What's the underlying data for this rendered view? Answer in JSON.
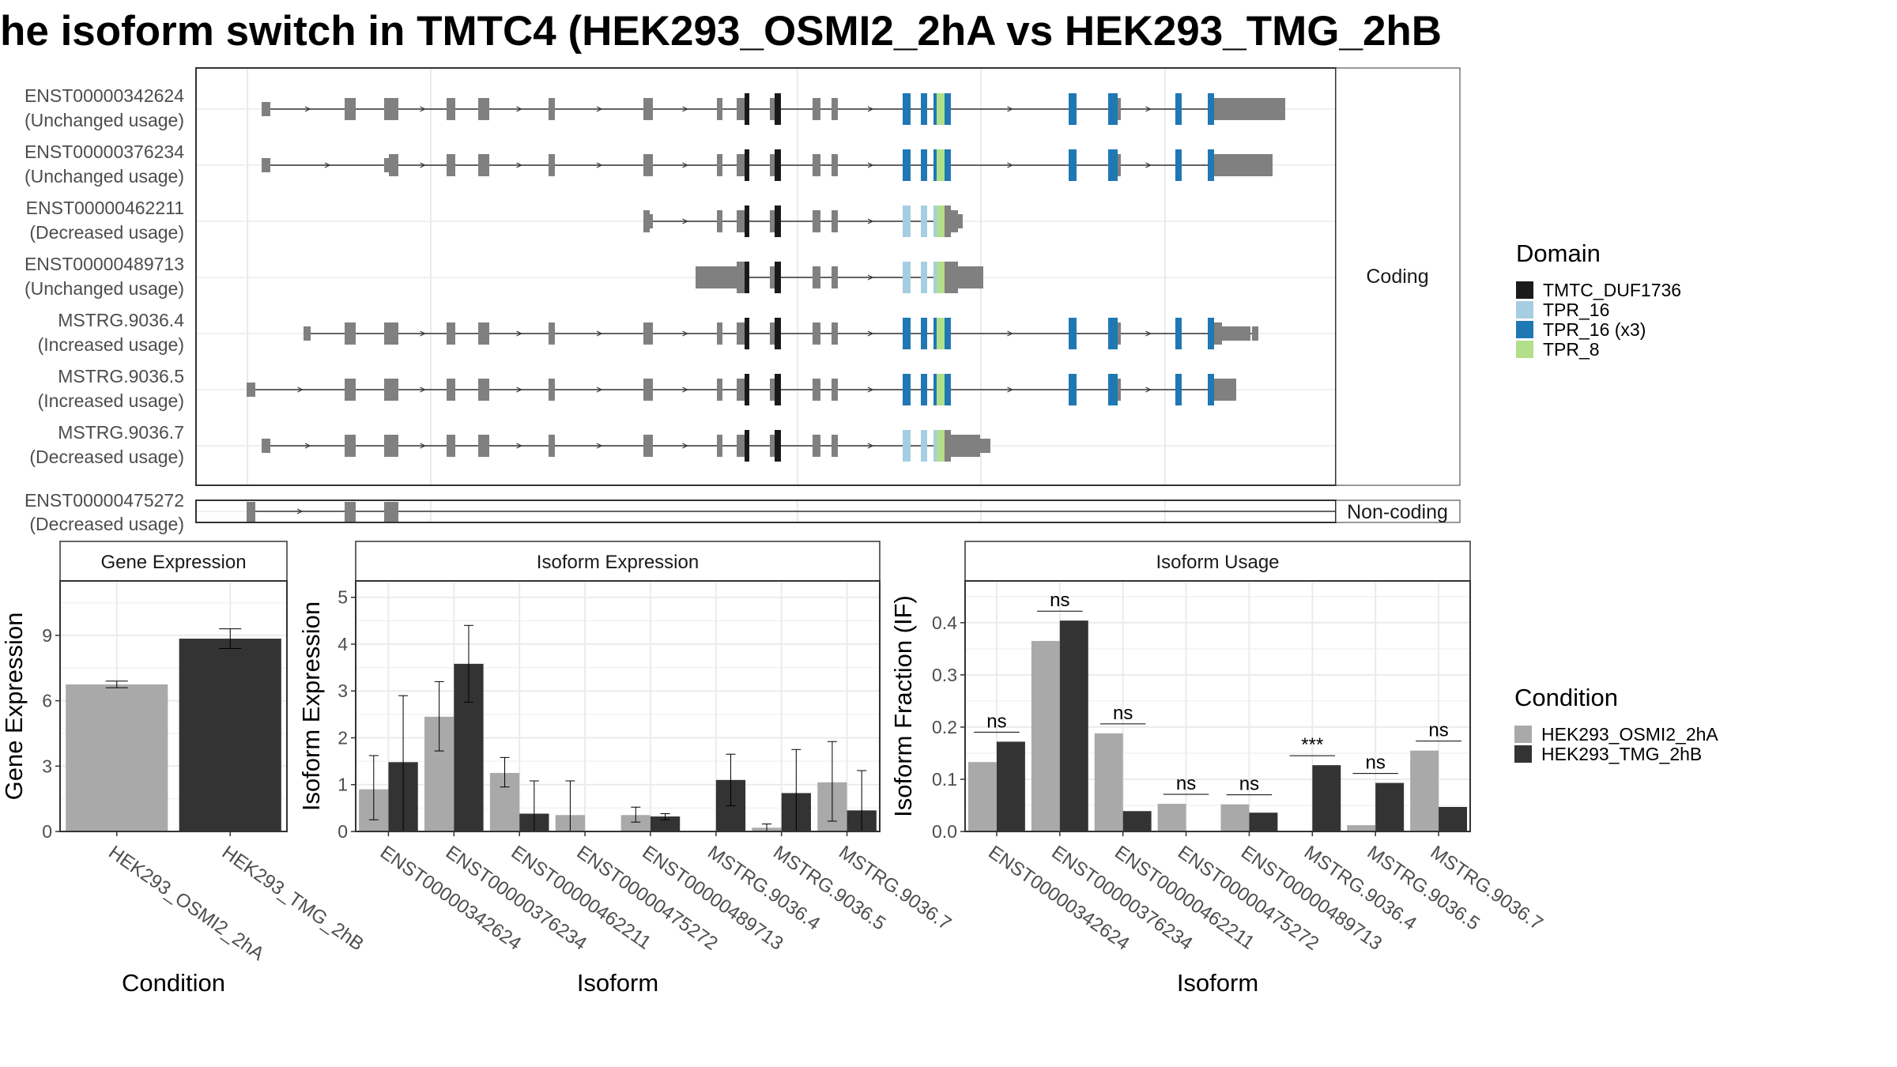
{
  "title": "he isoform switch in TMTC4 (HEK293_OSMI2_2hA vs HEK293_TMG_2hB",
  "colors": {
    "exon": "#808080",
    "intron": "#333333",
    "frame": "#333333",
    "grid": "#ebebeb",
    "condition_a": "#a9a9a9",
    "condition_b": "#333333"
  },
  "structure": {
    "coding_strip": "Coding",
    "noncoding_strip": "Non-coding",
    "coding_isoforms": [
      {
        "id": "ENST00000342624",
        "status": "(Unchanged usage)"
      },
      {
        "id": "ENST00000376234",
        "status": "(Unchanged usage)"
      },
      {
        "id": "ENST00000462211",
        "status": "(Decreased usage)"
      },
      {
        "id": "ENST00000489713",
        "status": "(Unchanged usage)"
      },
      {
        "id": "MSTRG.9036.4",
        "status": "(Increased usage)"
      },
      {
        "id": "MSTRG.9036.5",
        "status": "(Increased usage)"
      },
      {
        "id": "MSTRG.9036.7",
        "status": "(Decreased usage)"
      }
    ],
    "noncoding_isoforms": [
      {
        "id": "ENST00000475272",
        "status": "(Decreased usage)"
      }
    ]
  },
  "domain_legend": {
    "title": "Domain",
    "items": [
      {
        "label": "TMTC_DUF1736",
        "color": "#1a1a1a"
      },
      {
        "label": "TPR_16",
        "color": "#a6cee3"
      },
      {
        "label": "TPR_16 (x3)",
        "color": "#1f78b4"
      },
      {
        "label": "TPR_8",
        "color": "#b2df8a"
      }
    ]
  },
  "condition_legend": {
    "title": "Condition",
    "items": [
      {
        "label": "HEK293_OSMI2_2hA",
        "color": "#a9a9a9"
      },
      {
        "label": "HEK293_TMG_2hB",
        "color": "#333333"
      }
    ]
  },
  "chart_data": [
    {
      "type": "bar",
      "title": "Gene Expression",
      "xlabel": "Condition",
      "ylabel": "Gene Expression",
      "categories": [
        "HEK293_OSMI2_2hA",
        "HEK293_TMG_2hB"
      ],
      "values": [
        6.75,
        8.85
      ],
      "errors": [
        [
          6.6,
          6.9
        ],
        [
          8.4,
          9.3
        ]
      ],
      "ylim": [
        0,
        11.5
      ],
      "yticks": [
        0,
        3,
        6,
        9
      ]
    },
    {
      "type": "bar",
      "title": "Isoform Expression",
      "xlabel": "Isoform",
      "ylabel": "Isoform Expression",
      "categories": [
        "ENST00000342624",
        "ENST00000376234",
        "ENST00000462211",
        "ENST00000475272",
        "ENST00000489713",
        "MSTRG.9036.4",
        "MSTRG.9036.5",
        "MSTRG.9036.7"
      ],
      "series": [
        {
          "name": "HEK293_OSMI2_2hA",
          "values": [
            0.9,
            2.45,
            1.25,
            0.35,
            0.35,
            0.0,
            0.08,
            1.05
          ],
          "errors": [
            [
              0.25,
              1.62
            ],
            [
              1.72,
              3.2
            ],
            [
              0.95,
              1.58
            ],
            [
              0.0,
              1.08
            ],
            [
              0.2,
              0.52
            ],
            [
              0.0,
              0.0
            ],
            [
              0.0,
              0.16
            ],
            [
              0.22,
              1.92
            ]
          ]
        },
        {
          "name": "HEK293_TMG_2hB",
          "values": [
            1.48,
            3.58,
            0.38,
            0.0,
            0.32,
            1.1,
            0.82,
            0.45
          ],
          "errors": [
            [
              0.0,
              2.9
            ],
            [
              2.76,
              4.4
            ],
            [
              0.0,
              1.08
            ],
            [
              0.0,
              0.0
            ],
            [
              0.25,
              0.38
            ],
            [
              0.55,
              1.65
            ],
            [
              0.0,
              1.75
            ],
            [
              0.0,
              1.3
            ]
          ]
        }
      ],
      "ylim": [
        0,
        5.35
      ],
      "yticks": [
        0,
        1,
        2,
        3,
        4,
        5
      ]
    },
    {
      "type": "bar",
      "title": "Isoform Usage",
      "xlabel": "Isoform",
      "ylabel": "Isoform Fraction (IF)",
      "categories": [
        "ENST00000342624",
        "ENST00000376234",
        "ENST00000462211",
        "ENST00000475272",
        "ENST00000489713",
        "MSTRG.9036.4",
        "MSTRG.9036.5",
        "MSTRG.9036.7"
      ],
      "series": [
        {
          "name": "HEK293_OSMI2_2hA",
          "values": [
            0.133,
            0.365,
            0.188,
            0.053,
            0.052,
            0.0,
            0.012,
            0.155
          ]
        },
        {
          "name": "HEK293_TMG_2hB",
          "values": [
            0.172,
            0.404,
            0.039,
            0.0,
            0.036,
            0.127,
            0.093,
            0.047
          ]
        }
      ],
      "significance": [
        "ns",
        "ns",
        "ns",
        "ns",
        "ns",
        "***",
        "ns",
        "ns"
      ],
      "ylim": [
        0,
        0.48
      ],
      "yticks": [
        0.0,
        0.1,
        0.2,
        0.3,
        0.4
      ]
    }
  ]
}
